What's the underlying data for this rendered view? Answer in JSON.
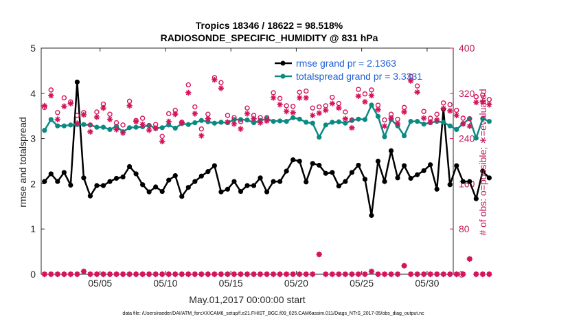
{
  "colors": {
    "rmse": "#000000",
    "spread": "#0b8a84",
    "obs": "#d4145a",
    "axis": "#262626",
    "legend_text": "#1f5fd6"
  },
  "chart_data": {
    "type": "line",
    "title_line1": "Tropics 18346 / 18622 = 98.518%",
    "title_line2": "RADIOSONDE_SPECIFIC_HUMIDITY @ 831 hPa",
    "xlabel": "May.01,2017 00:00:00 start",
    "ylabel_left": "rmse and totalspread",
    "ylabel_right": "# of obs: o=possible; ∗=evaluated",
    "footer": "data file: /Users/raeder/DAI/ATM_forcXX/CAM6_setup/f.e21.FHIST_BGC.f09_025.CAM6assim.011/Diags_NTrS_2017-05/obs_diag_output.nc",
    "xlim": [
      0.5,
      32.0
    ],
    "ylim_left": [
      0,
      5
    ],
    "ylim_right": [
      0,
      400
    ],
    "x_ticks": [
      5,
      10,
      15,
      20,
      25,
      30
    ],
    "x_tick_labels": [
      "05/05",
      "05/10",
      "05/15",
      "05/20",
      "05/25",
      "05/30"
    ],
    "y_left_ticks": [
      "0",
      "1",
      "2",
      "3",
      "4",
      "5"
    ],
    "y_right_ticks": [
      "0",
      "80",
      "160",
      "240",
      "320",
      "400"
    ],
    "legend": [
      "rmse grand pr = 2.1363",
      "totalspread grand pr = 3.3331"
    ],
    "x_start": 0.75,
    "x_step": 0.5,
    "series": [
      {
        "name": "rmse",
        "values": [
          2.05,
          2.22,
          2.05,
          2.25,
          1.97,
          4.25,
          2.13,
          1.73,
          1.96,
          1.96,
          2.05,
          2.12,
          2.15,
          2.38,
          2.22,
          1.98,
          1.82,
          1.93,
          1.83,
          2.08,
          2.18,
          1.72,
          1.92,
          2.05,
          2.17,
          2.27,
          2.4,
          1.82,
          1.88,
          2.05,
          1.83,
          1.96,
          1.96,
          2.13,
          1.82,
          2.05,
          2.05,
          2.28,
          2.53,
          2.5,
          2.04,
          2.45,
          2.41,
          2.23,
          2.25,
          1.95,
          2.05,
          2.25,
          2.41,
          2.1,
          1.3,
          2.5,
          2.05,
          2.73,
          2.13,
          2.4,
          2.12,
          2.2,
          2.29,
          2.42,
          1.88,
          3.65,
          1.98,
          2.4,
          2.05,
          2.05,
          1.67,
          2.28,
          2.13
        ]
      },
      {
        "name": "totalspread",
        "values": [
          3.18,
          3.42,
          3.28,
          3.28,
          3.3,
          3.31,
          3.31,
          3.3,
          3.25,
          3.25,
          3.2,
          3.27,
          3.15,
          3.24,
          3.25,
          3.26,
          3.29,
          3.23,
          3.24,
          3.3,
          3.23,
          3.33,
          3.31,
          3.35,
          3.4,
          3.37,
          3.34,
          3.36,
          3.35,
          3.42,
          3.42,
          3.41,
          3.35,
          3.4,
          3.44,
          3.38,
          3.39,
          3.38,
          3.46,
          3.43,
          3.36,
          3.34,
          3.03,
          3.3,
          3.36,
          3.37,
          3.34,
          3.4,
          3.43,
          3.42,
          3.74,
          3.49,
          3.04,
          3.42,
          3.28,
          3.06,
          3.38,
          3.38,
          3.32,
          3.35,
          3.38,
          3.36,
          3.28,
          3.2,
          3.33,
          3.44,
          3.01,
          3.44,
          3.38
        ]
      },
      {
        "name": "possible",
        "values": [
          295,
          326,
          286,
          312,
          305,
          281,
          286,
          264,
          287,
          301,
          283,
          268,
          264,
          306,
          272,
          276,
          263,
          265,
          244,
          284,
          290,
          269,
          335,
          296,
          257,
          283,
          348,
          339,
          281,
          277,
          270,
          294,
          281,
          277,
          277,
          321,
          311,
          298,
          297,
          322,
          324,
          294,
          296,
          298,
          313,
          302,
          287,
          273,
          327,
          319,
          326,
          299,
          273,
          283,
          274,
          295,
          350,
          333,
          288,
          276,
          283,
          303,
          300,
          290,
          276,
          275,
          314,
          317,
          309
        ]
      },
      {
        "name": "evaluated",
        "values": [
          298,
          316,
          274,
          297,
          302,
          267,
          282,
          252,
          278,
          294,
          274,
          256,
          250,
          298,
          270,
          265,
          255,
          258,
          235,
          270,
          283,
          268,
          321,
          284,
          245,
          275,
          344,
          329,
          269,
          266,
          257,
          284,
          275,
          268,
          271,
          312,
          300,
          288,
          286,
          312,
          312,
          281,
          285,
          290,
          302,
          294,
          275,
          259,
          315,
          305,
          316,
          291,
          262,
          276,
          266,
          287,
          342,
          322,
          276,
          269,
          273,
          293,
          289,
          281,
          266,
          262,
          304,
          305,
          300
        ]
      },
      {
        "name": "possible_low",
        "values": [
          0,
          0,
          0,
          0,
          0,
          0,
          5,
          0,
          0,
          0,
          0,
          0,
          0,
          0,
          0,
          0,
          0,
          0,
          0,
          0,
          0,
          0,
          0,
          0,
          0,
          0,
          0,
          0,
          0,
          0,
          0,
          0,
          0,
          0,
          0,
          0,
          0,
          0,
          0,
          0,
          0,
          0,
          35,
          0,
          0,
          0,
          0,
          0,
          0,
          0,
          5,
          0,
          0,
          0,
          0,
          15,
          0,
          0,
          0,
          0,
          0,
          0,
          0,
          0,
          0,
          27,
          0,
          0,
          0
        ]
      },
      {
        "name": "evaluated_low",
        "values": [
          0,
          0,
          0,
          0,
          0,
          0,
          5,
          0,
          0,
          0,
          0,
          0,
          0,
          0,
          0,
          0,
          0,
          0,
          0,
          0,
          0,
          0,
          0,
          0,
          0,
          0,
          0,
          0,
          0,
          0,
          0,
          0,
          0,
          0,
          0,
          0,
          0,
          0,
          0,
          0,
          0,
          0,
          35,
          0,
          0,
          0,
          0,
          0,
          0,
          0,
          5,
          0,
          0,
          0,
          0,
          15,
          0,
          0,
          0,
          0,
          0,
          0,
          0,
          0,
          0,
          27,
          0,
          0,
          0
        ]
      }
    ]
  }
}
